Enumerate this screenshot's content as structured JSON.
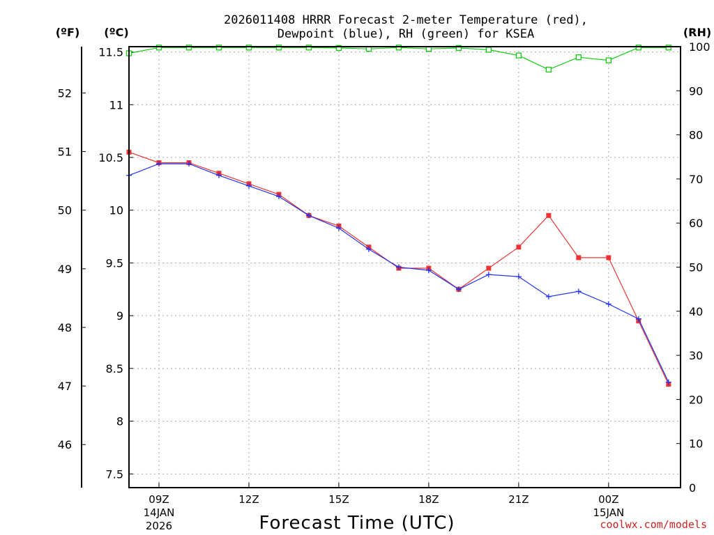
{
  "chart_data": {
    "type": "line",
    "title_line1": "2026011408 HRRR Forecast 2-meter Temperature (red),",
    "title_line2": "Dewpoint (blue), RH (green) for KSEA",
    "left_unit_f": "(ºF)",
    "left_unit_c": "(ºC)",
    "right_unit": "(RH)",
    "xlabel": "Forecast Time (UTC)",
    "credit": "coolwx.com/models",
    "colors": {
      "temperature": "#ee3333",
      "dewpoint": "#2233ee",
      "rh": "#11cc11",
      "grid": "#aaaaaa",
      "credit": "#cc2222"
    },
    "x_hours": [
      8,
      9,
      10,
      11,
      12,
      13,
      14,
      15,
      16,
      17,
      18,
      19,
      20,
      21,
      22,
      23,
      24,
      25,
      26
    ],
    "xlim": [
      8,
      26.4
    ],
    "x_ticks": [
      {
        "hour": 9,
        "label": "09Z",
        "date": "14JAN",
        "year": "2026"
      },
      {
        "hour": 12,
        "label": "12Z",
        "date": "",
        "year": ""
      },
      {
        "hour": 15,
        "label": "15Z",
        "date": "",
        "year": ""
      },
      {
        "hour": 18,
        "label": "18Z",
        "date": "",
        "year": ""
      },
      {
        "hour": 21,
        "label": "21Z",
        "date": "",
        "year": ""
      },
      {
        "hour": 24,
        "label": "00Z",
        "date": "15JAN",
        "year": ""
      }
    ],
    "celsius_axis": {
      "ylim": [
        7.37,
        11.55
      ],
      "ticks": [
        "7.5",
        "8",
        "8.5",
        "9",
        "9.5",
        "10",
        "10.5",
        "11",
        "11.5"
      ]
    },
    "fahrenheit_axis": {
      "ticks": [
        "46",
        "47",
        "48",
        "49",
        "50",
        "51",
        "52"
      ]
    },
    "rh_axis": {
      "ylim": [
        0,
        100
      ],
      "ticks": [
        "0",
        "10",
        "20",
        "30",
        "40",
        "50",
        "60",
        "70",
        "80",
        "90",
        "100"
      ]
    },
    "series": [
      {
        "name": "Temperature",
        "axis": "celsius",
        "values": [
          10.55,
          10.45,
          10.45,
          10.35,
          10.25,
          10.15,
          9.95,
          9.85,
          9.65,
          9.45,
          9.45,
          9.25,
          9.45,
          9.65,
          9.95,
          9.55,
          9.55,
          8.95,
          8.35
        ]
      },
      {
        "name": "Dewpoint",
        "axis": "celsius",
        "values": [
          10.33,
          10.44,
          10.44,
          10.33,
          10.23,
          10.13,
          9.95,
          9.83,
          9.63,
          9.46,
          9.43,
          9.25,
          9.39,
          9.37,
          9.18,
          9.23,
          9.11,
          8.97,
          8.37
        ]
      },
      {
        "name": "RH",
        "axis": "rh",
        "values": [
          98.5,
          99.8,
          99.8,
          99.8,
          99.8,
          99.8,
          99.8,
          99.7,
          99.5,
          99.8,
          99.5,
          99.7,
          99.3,
          98.0,
          94.8,
          97.6,
          96.9,
          99.8,
          99.8
        ]
      }
    ]
  }
}
